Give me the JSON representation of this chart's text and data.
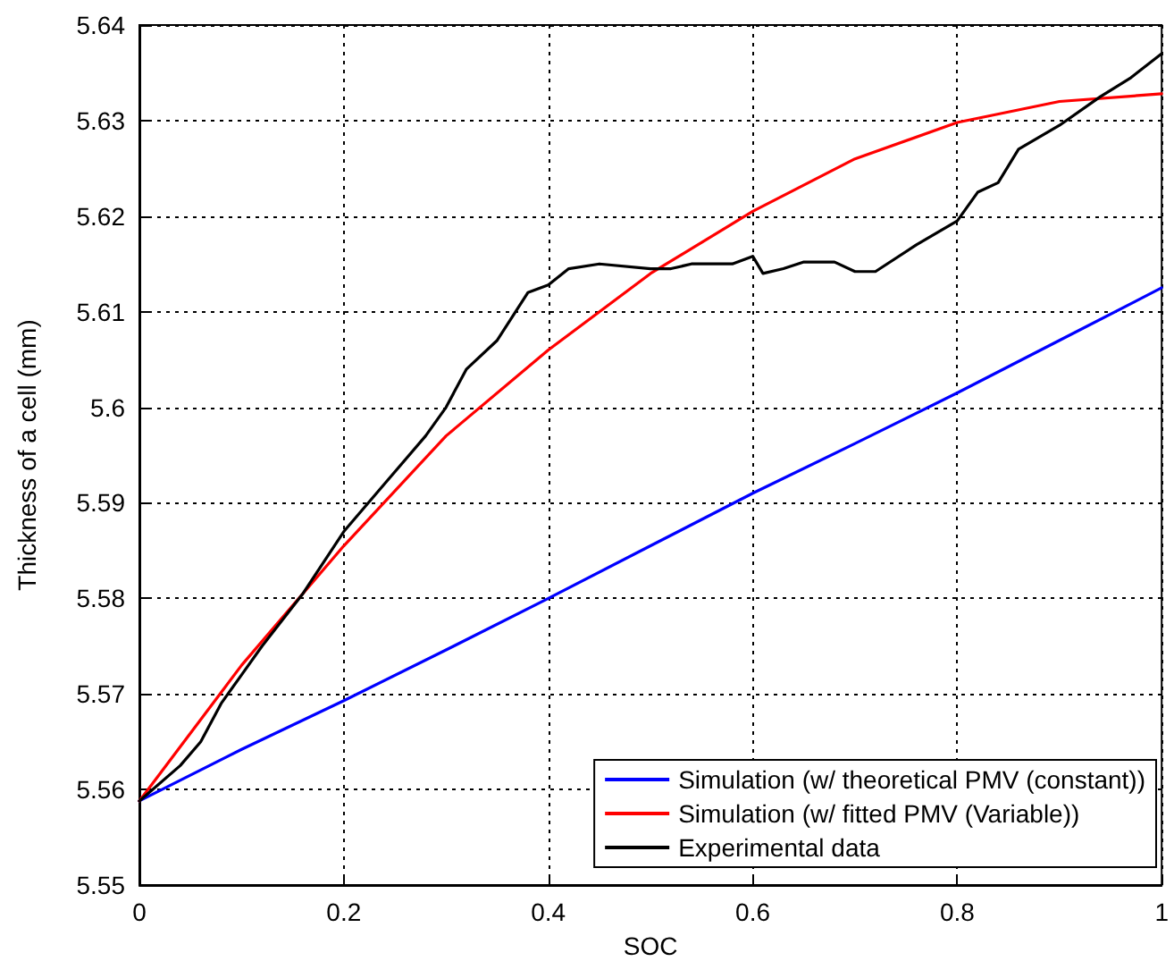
{
  "chart_data": {
    "type": "line",
    "xlabel": "SOC",
    "ylabel": "Thickness of a cell (mm)",
    "xlim": [
      0,
      1
    ],
    "xticks": [
      0,
      0.2,
      0.4,
      0.6,
      0.8,
      1
    ],
    "ylim": [
      5.55,
      5.64
    ],
    "yticks": [
      5.55,
      5.56,
      5.57,
      5.58,
      5.59,
      5.6,
      5.61,
      5.62,
      5.63,
      5.64
    ],
    "grid": true,
    "legend": "bottom right",
    "marker": "none",
    "line_style": "solid",
    "series": [
      {
        "name": "Simulation (w/ theoretical PMV (constant))",
        "color": "#0000ff",
        "x": [
          0,
          0.1,
          0.2,
          0.3,
          0.4,
          0.5,
          0.6,
          0.7,
          0.8,
          0.9,
          1
        ],
        "values": [
          5.5588,
          5.5642,
          5.5693,
          5.5746,
          5.58,
          5.5855,
          5.591,
          5.5962,
          5.6015,
          5.607,
          5.6125
        ]
      },
      {
        "name": "Simulation (w/ fitted PMV (Variable))",
        "color": "#ff0000",
        "x": [
          0,
          0.1,
          0.2,
          0.3,
          0.4,
          0.5,
          0.6,
          0.7,
          0.8,
          0.9,
          1
        ],
        "values": [
          5.5588,
          5.573,
          5.5855,
          5.597,
          5.606,
          5.614,
          5.6205,
          5.626,
          5.6298,
          5.632,
          5.6328
        ]
      },
      {
        "name": "Experimental data",
        "color": "#000000",
        "x": [
          0,
          0.04,
          0.06,
          0.08,
          0.1,
          0.12,
          0.16,
          0.2,
          0.24,
          0.28,
          0.3,
          0.32,
          0.35,
          0.38,
          0.4,
          0.42,
          0.45,
          0.5,
          0.52,
          0.54,
          0.58,
          0.6,
          0.61,
          0.63,
          0.65,
          0.68,
          0.7,
          0.72,
          0.76,
          0.8,
          0.82,
          0.84,
          0.86,
          0.9,
          0.94,
          0.97,
          1
        ],
        "values": [
          5.5588,
          5.5625,
          5.565,
          5.569,
          5.572,
          5.575,
          5.5805,
          5.587,
          5.592,
          5.597,
          5.6,
          5.604,
          5.607,
          5.612,
          5.6128,
          5.6145,
          5.615,
          5.6145,
          5.6145,
          5.615,
          5.615,
          5.6158,
          5.614,
          5.6145,
          5.6152,
          5.6152,
          5.6142,
          5.6142,
          5.617,
          5.6195,
          5.6225,
          5.6235,
          5.627,
          5.6295,
          5.6325,
          5.6345,
          5.637
        ]
      }
    ]
  }
}
